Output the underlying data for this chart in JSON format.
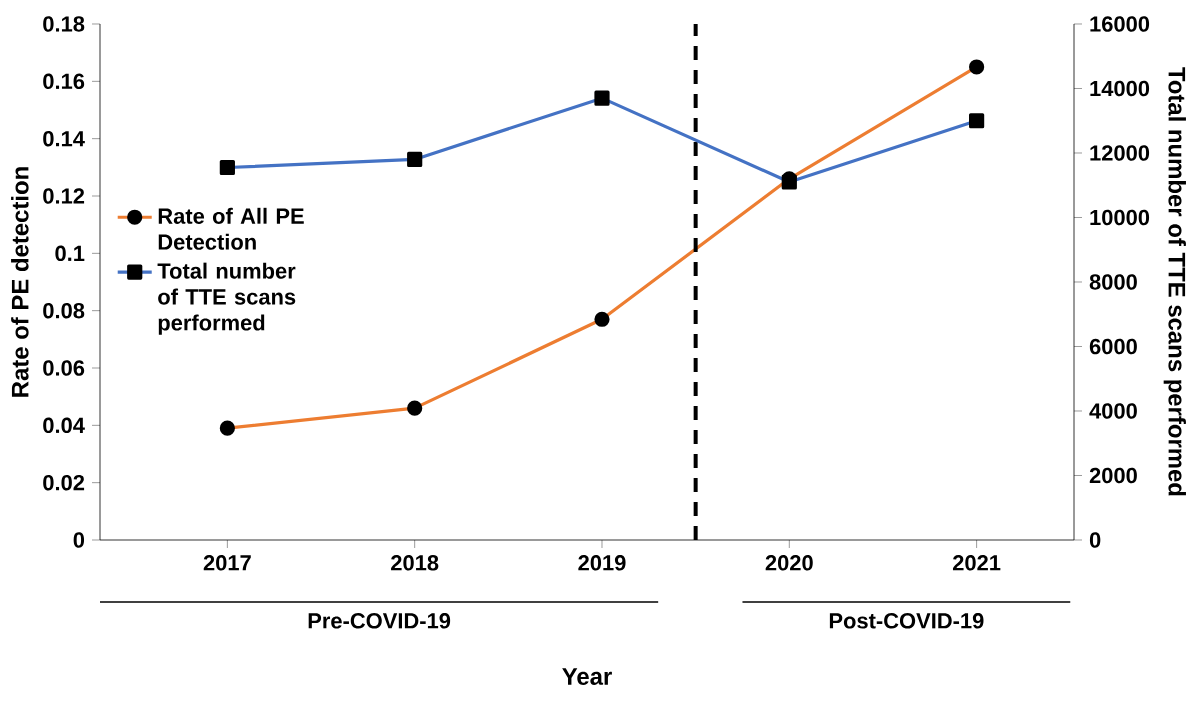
{
  "chart_data": {
    "type": "line",
    "xlabel": "Year",
    "ylabel": "Rate of PE detection",
    "y2label": "Total number of TTE scans performed",
    "categories": [
      "2017",
      "2018",
      "2019",
      "2020",
      "2021"
    ],
    "series": [
      {
        "name": "Rate of All PE Detection",
        "color": "#ed7d31",
        "marker": "circle",
        "values": [
          0.039,
          0.046,
          0.077,
          0.126,
          0.165
        ]
      },
      {
        "name": "Total number of TTE scans performed",
        "color": "#4472c4",
        "marker": "square",
        "axis": "y2",
        "values": [
          11550,
          11800,
          13700,
          11100,
          13000
        ]
      }
    ],
    "ylim": [
      0,
      0.18
    ],
    "yticks": [
      0,
      0.02,
      0.04,
      0.06,
      0.08,
      0.1,
      0.12,
      0.14,
      0.16,
      0.18
    ],
    "y2lim": [
      0,
      16000
    ],
    "y2ticks": [
      0,
      2000,
      4000,
      6000,
      8000,
      10000,
      12000,
      14000,
      16000
    ],
    "annotations": [
      "Pre-COVID-19",
      "Post-COVID-19"
    ],
    "legend": "left",
    "grid": false
  }
}
